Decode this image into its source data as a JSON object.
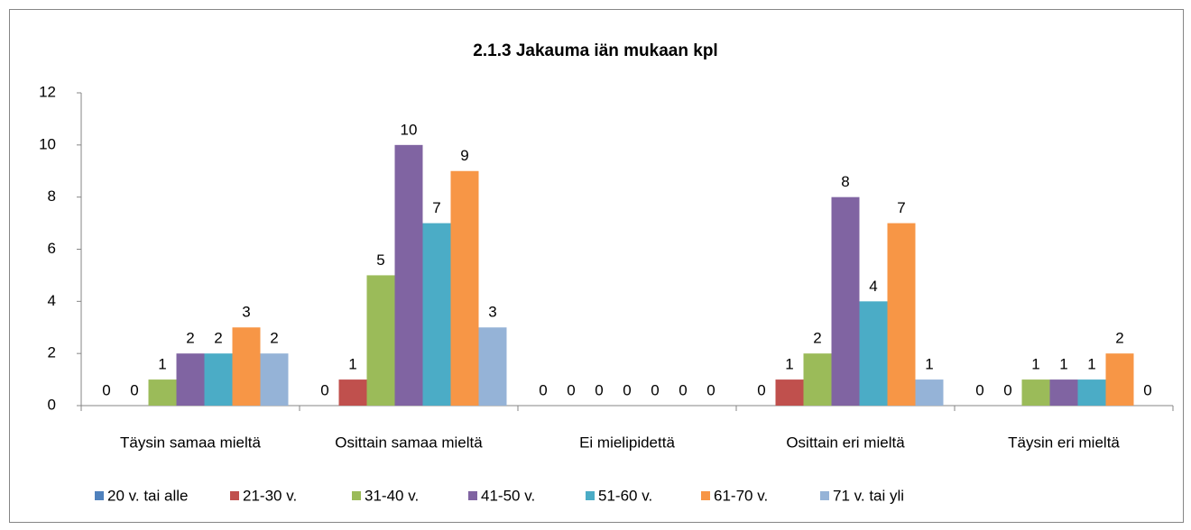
{
  "chart_data": {
    "type": "bar",
    "title": "2.1.3 Jakauma iän mukaan kpl",
    "categories": [
      "Täysin samaa mieltä",
      "Osittain samaa mieltä",
      "Ei mielipidettä",
      "Osittain eri mieltä",
      "Täysin eri mieltä"
    ],
    "series": [
      {
        "name": "20 v. tai alle",
        "color": "#4f81bd",
        "values": [
          0,
          0,
          0,
          0,
          0
        ]
      },
      {
        "name": "21-30 v.",
        "color": "#c0504d",
        "values": [
          0,
          1,
          0,
          1,
          0
        ]
      },
      {
        "name": "31-40 v.",
        "color": "#9bbb59",
        "values": [
          1,
          5,
          0,
          2,
          1
        ]
      },
      {
        "name": "41-50 v.",
        "color": "#8064a2",
        "values": [
          2,
          10,
          0,
          8,
          1
        ]
      },
      {
        "name": "51-60 v.",
        "color": "#4bacc6",
        "values": [
          2,
          7,
          0,
          4,
          1
        ]
      },
      {
        "name": "61-70 v.",
        "color": "#f79646",
        "values": [
          3,
          9,
          0,
          7,
          2
        ]
      },
      {
        "name": "71 v. tai yli",
        "color": "#95b3d7",
        "values": [
          2,
          3,
          0,
          1,
          0
        ]
      }
    ],
    "ylim": [
      0,
      12
    ],
    "yticks": [
      0,
      2,
      4,
      6,
      8,
      10,
      12
    ],
    "legend": "bottom",
    "grid": false
  }
}
